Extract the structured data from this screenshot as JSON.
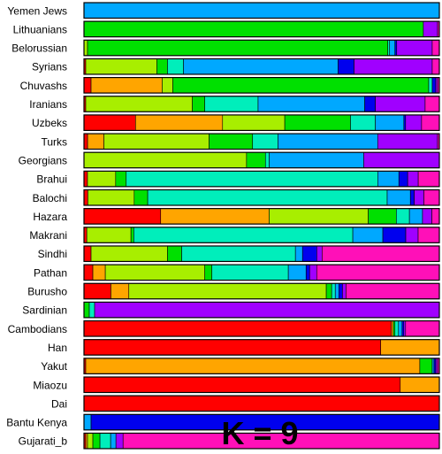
{
  "chart_data": {
    "type": "bar",
    "orientation": "horizontal",
    "stacked": true,
    "title": "K = 9",
    "component_colors": [
      "#ff0000",
      "#ffa500",
      "#a8ee00",
      "#00e000",
      "#00eebb",
      "#00a8ff",
      "#0000ee",
      "#a000ff",
      "#ff10b8"
    ],
    "categories": [
      "Yemen Jews",
      "Lithuanians",
      "Belorussian",
      "Syrians",
      "Chuvashs",
      "Iranians",
      "Uzbeks",
      "Turks",
      "Georgians",
      "Brahui",
      "Balochi",
      "Hazara",
      "Makrani",
      "Sindhi",
      "Pathan",
      "Burusho",
      "Sardinian",
      "Cambodians",
      "Han",
      "Yakut",
      "Miaozu",
      "Dai",
      "Bantu Kenya",
      "Gujarati_b"
    ],
    "series": [
      {
        "values": [
          0.0,
          0.0,
          0.0,
          0.005,
          0.02,
          0.005,
          0.145,
          0.01,
          0.0,
          0.01,
          0.01,
          0.205,
          0.008,
          0.02,
          0.025,
          0.075,
          0.0,
          0.865,
          0.835,
          0.005,
          0.89,
          1.0,
          0.0,
          0.005
        ]
      },
      {
        "values": [
          0.0,
          0.0,
          0.0,
          0.0,
          0.2,
          0.0,
          0.245,
          0.045,
          0.0,
          0.0,
          0.0,
          0.29,
          0.0,
          0.0,
          0.035,
          0.05,
          0.0,
          0.005,
          0.165,
          0.94,
          0.11,
          0.0,
          0.0,
          0.005
        ]
      },
      {
        "values": [
          0.0,
          0.0,
          0.01,
          0.2,
          0.03,
          0.3,
          0.175,
          0.29,
          0.43,
          0.08,
          0.12,
          0.265,
          0.125,
          0.215,
          0.28,
          0.55,
          0.0,
          0.0,
          0.0,
          0.0,
          0.0,
          0.0,
          0.0,
          0.015
        ]
      },
      {
        "values": [
          0.0,
          0.955,
          0.845,
          0.03,
          0.72,
          0.035,
          0.185,
          0.12,
          0.05,
          0.03,
          0.035,
          0.075,
          0.008,
          0.04,
          0.02,
          0.015,
          0.015,
          0.005,
          0.0,
          0.035,
          0.0,
          0.0,
          0.0,
          0.02
        ]
      },
      {
        "values": [
          0.0,
          0.0,
          0.005,
          0.045,
          0.01,
          0.15,
          0.07,
          0.07,
          0.01,
          0.715,
          0.62,
          0.035,
          0.62,
          0.32,
          0.215,
          0.01,
          0.015,
          0.01,
          0.0,
          0.0,
          0.0,
          0.0,
          0.0,
          0.03
        ]
      },
      {
        "values": [
          1.0,
          0.0,
          0.015,
          0.435,
          0.0,
          0.3,
          0.08,
          0.275,
          0.25,
          0.06,
          0.06,
          0.035,
          0.085,
          0.02,
          0.05,
          0.01,
          0.0,
          0.01,
          0.0,
          0.005,
          0.0,
          0.0,
          0.02,
          0.015
        ]
      },
      {
        "values": [
          0.0,
          0.0,
          0.005,
          0.045,
          0.01,
          0.03,
          0.005,
          0.0,
          0.0,
          0.025,
          0.01,
          0.0,
          0.065,
          0.04,
          0.01,
          0.01,
          0.0,
          0.005,
          0.0,
          0.005,
          0.0,
          0.0,
          0.98,
          0.0
        ]
      },
      {
        "values": [
          0.0,
          0.04,
          0.1,
          0.22,
          0.005,
          0.14,
          0.045,
          0.165,
          0.2,
          0.03,
          0.025,
          0.025,
          0.035,
          0.015,
          0.02,
          0.01,
          0.97,
          0.005,
          0.0,
          0.005,
          0.0,
          0.0,
          0.0,
          0.02
        ]
      },
      {
        "values": [
          0.0,
          0.005,
          0.02,
          0.02,
          0.005,
          0.04,
          0.05,
          0.005,
          0.0,
          0.06,
          0.04,
          0.02,
          0.06,
          0.33,
          0.345,
          0.26,
          0.0,
          0.095,
          0.0,
          0.005,
          0.0,
          0.0,
          0.0,
          0.89
        ]
      }
    ]
  }
}
